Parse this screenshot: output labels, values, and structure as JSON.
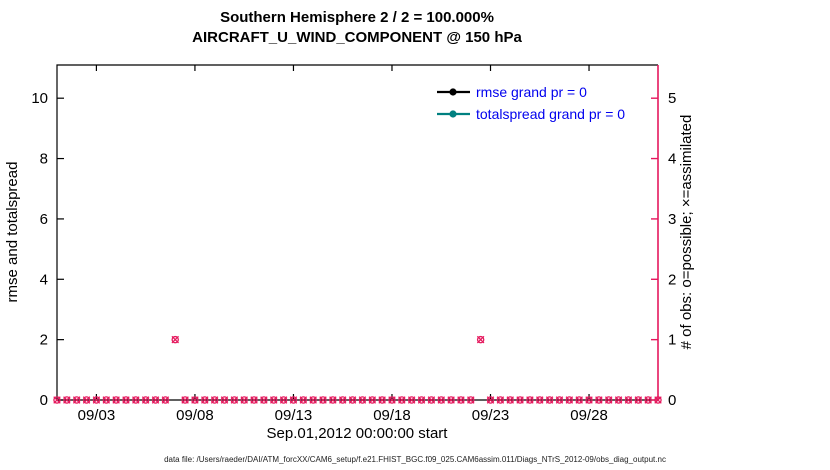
{
  "title": {
    "line1": "Southern Hemisphere 2 / 2 = 100.000%",
    "line2": "AIRCRAFT_U_WIND_COMPONENT @ 150 hPa"
  },
  "colors": {
    "obs_marker": "#e5185d",
    "right_axis": "#e5185d",
    "rmse_line": "#000000",
    "totalspread_line": "#008080",
    "legend_text": "#0000ee",
    "axis_black": "#000000"
  },
  "chart_data": {
    "type": "scatter",
    "title": "Southern Hemisphere 2 / 2 = 100.000% — AIRCRAFT_U_WIND_COMPONENT @ 150 hPa",
    "xlabel": "Sep.01,2012 00:00:00 start",
    "ylabel_left": "rmse and totalspread",
    "ylabel_right": "# of obs: o=possible; ×=assimilated",
    "grid": false,
    "legend_position": "top-right-inside",
    "x_axis": {
      "unit": "days since Sep.01,2012 00:00",
      "range": [
        0,
        30.5
      ],
      "ticks": [
        {
          "day": 2,
          "label": "09/03"
        },
        {
          "day": 7,
          "label": "09/08"
        },
        {
          "day": 12,
          "label": "09/13"
        },
        {
          "day": 17,
          "label": "09/18"
        },
        {
          "day": 22,
          "label": "09/23"
        },
        {
          "day": 27,
          "label": "09/28"
        }
      ]
    },
    "y_axis_left": {
      "range": [
        0,
        11.1
      ],
      "ticks": [
        0,
        2,
        4,
        6,
        8,
        10
      ]
    },
    "y_axis_right": {
      "range": [
        0,
        5.55
      ],
      "ticks": [
        0,
        1,
        2,
        3,
        4,
        5
      ]
    },
    "legend": [
      {
        "label": "rmse grand pr = 0",
        "color": "#000000",
        "marker": "filled-circle"
      },
      {
        "label": "totalspread grand pr = 0",
        "color": "#008080",
        "marker": "filled-circle"
      }
    ],
    "series": [
      {
        "name": "possible obs (o)",
        "axis": "right",
        "marker": "o",
        "color": "#e5185d",
        "sampling": {
          "start_day": 0,
          "end_day": 30.5,
          "step_days": 0.5
        },
        "baseline_value": 0,
        "nonzero_points": [
          {
            "day": 6,
            "value": 1
          },
          {
            "day": 21.5,
            "value": 1
          }
        ]
      },
      {
        "name": "assimilated obs (×)",
        "axis": "right",
        "marker": "x",
        "color": "#e5185d",
        "sampling": {
          "start_day": 0,
          "end_day": 30.5,
          "step_days": 0.5
        },
        "baseline_value": 0,
        "nonzero_points": [
          {
            "day": 6,
            "value": 1
          },
          {
            "day": 21.5,
            "value": 1
          }
        ]
      }
    ],
    "note": "rmse and totalspread curves contain no plotted points (grand pr = 0)"
  },
  "caption": "data file: /Users/raeder/DAI/ATM_forcXX/CAM6_setup/f.e21.FHIST_BGC.f09_025.CAM6assim.011/Diags_NTrS_2012-09/obs_diag_output.nc"
}
